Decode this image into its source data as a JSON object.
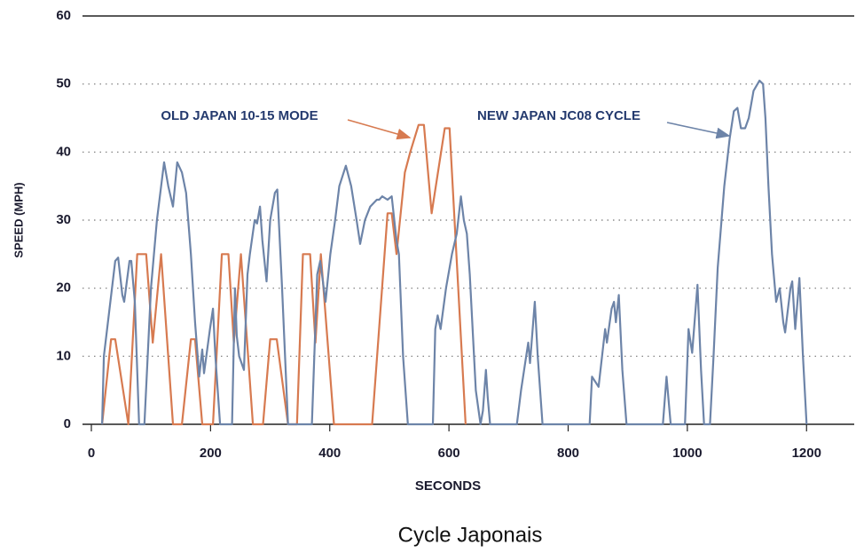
{
  "chart_data": {
    "type": "line",
    "title": "Cycle Japonais",
    "xlabel": "SECONDS",
    "ylabel": "SPEED (MPH)",
    "xlim": [
      0,
      1280
    ],
    "xticks": [
      0,
      200,
      400,
      600,
      800,
      1000,
      1200
    ],
    "ylim": [
      0,
      60
    ],
    "yticks": [
      0,
      10,
      20,
      30,
      40,
      50,
      60
    ],
    "grid": true,
    "annotations": [
      "OLD JAPAN 10-15 MODE",
      "NEW JAPAN JC08 CYCLE"
    ],
    "series": [
      {
        "name": "OLD JAPAN 10-15 MODE",
        "color": "#d77a50",
        "x": [
          18,
          33,
          40,
          62,
          77,
          92,
          103,
          117,
          137,
          152,
          167,
          174,
          186,
          204,
          219,
          230,
          239,
          251,
          271,
          288,
          300,
          311,
          330,
          345,
          355,
          367,
          376,
          385,
          407,
          471,
          497,
          504,
          512,
          526,
          535,
          549,
          558,
          571,
          593,
          601,
          628
        ],
        "values": [
          0,
          12.5,
          12.5,
          0,
          25,
          25,
          12,
          25,
          0,
          0,
          12.5,
          12.5,
          0,
          0,
          25,
          25,
          12,
          25,
          0,
          0,
          12.5,
          12.5,
          0,
          0,
          25,
          25,
          12,
          25,
          0,
          0,
          31,
          31,
          25,
          37,
          40,
          44,
          44,
          31,
          43.5,
          43.5,
          0
        ]
      },
      {
        "name": "NEW JAPAN JC08 CYCLE",
        "color": "#6d84a8",
        "x": [
          18,
          21,
          40,
          45,
          52,
          55,
          64,
          67,
          73,
          80,
          89,
          100,
          110,
          122,
          129,
          137,
          144,
          152,
          159,
          167,
          174,
          181,
          186,
          189,
          199,
          204,
          208,
          216,
          236,
          241,
          244,
          248,
          256,
          262,
          266,
          274,
          278,
          283,
          287,
          294,
          300,
          308,
          312,
          320,
          330,
          370,
          379,
          384,
          393,
          401,
          409,
          416,
          427,
          436,
          445,
          451,
          459,
          468,
          479,
          483,
          488,
          497,
          504,
          512,
          516,
          523,
          531,
          573,
          577,
          581,
          586,
          595,
          605,
          613,
          620,
          625,
          630,
          635,
          645,
          653,
          657,
          662,
          665,
          669,
          714,
          721,
          733,
          736,
          744,
          749,
          757,
          836,
          840,
          851,
          862,
          865,
          873,
          877,
          880,
          885,
          891,
          898,
          959,
          965,
          972,
          996,
          1002,
          1008,
          1017,
          1023,
          1028,
          1038,
          1044,
          1051,
          1062,
          1071,
          1078,
          1084,
          1090,
          1097,
          1103,
          1111,
          1121,
          1127,
          1131,
          1136,
          1142,
          1149,
          1155,
          1161,
          1164,
          1173,
          1176,
          1181,
          1188,
          1194,
          1200
        ],
        "values": [
          0,
          10,
          24,
          24.5,
          19,
          18,
          24,
          24,
          18,
          0,
          0,
          20,
          30,
          38.5,
          35,
          32,
          38.5,
          37,
          34,
          25,
          15,
          7,
          11,
          7.5,
          14,
          17,
          10,
          0,
          0,
          20,
          13,
          10,
          8,
          22,
          25,
          30,
          29.5,
          32,
          27,
          21,
          30,
          34,
          34.5,
          20,
          0,
          0,
          22,
          24,
          18,
          25,
          30,
          35,
          38,
          35,
          30,
          26.5,
          30,
          32,
          33,
          33,
          33.5,
          33,
          33.5,
          27,
          25,
          10,
          0,
          0,
          14,
          16,
          14,
          20,
          25,
          28,
          33.5,
          30,
          28,
          22,
          5,
          0,
          2,
          8,
          4,
          0,
          0,
          5,
          12,
          9,
          18,
          10,
          0,
          0,
          7,
          5.5,
          14,
          12,
          17,
          18,
          15,
          19,
          8,
          0,
          0,
          7,
          0,
          0,
          14,
          10.5,
          20.5,
          8,
          0,
          0,
          10,
          23,
          35,
          42,
          46,
          46.5,
          43.5,
          43.5,
          45,
          49,
          50.5,
          50,
          45,
          35,
          25,
          18,
          20,
          15,
          13.5,
          20,
          21,
          14,
          21.5,
          10,
          0
        ]
      }
    ]
  }
}
